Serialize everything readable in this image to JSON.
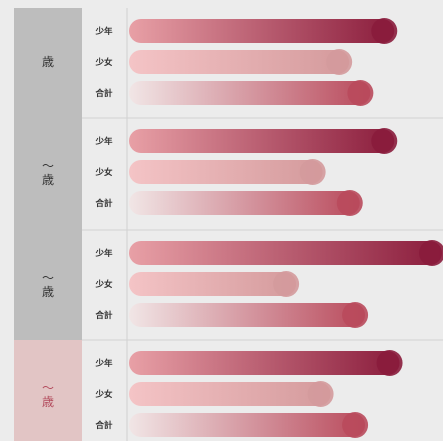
{
  "chart_data": {
    "type": "bar",
    "orientation": "horizontal",
    "groups": [
      {
        "label": "歳",
        "highlight": false,
        "rows": [
          {
            "label": "少年",
            "value": 100
          },
          {
            "label": "少女",
            "value": 83
          },
          {
            "label": "合計",
            "value": 91
          }
        ]
      },
      {
        "label": "〜\n歳",
        "highlight": false,
        "rows": [
          {
            "label": "少年",
            "value": 100
          },
          {
            "label": "少女",
            "value": 73
          },
          {
            "label": "合計",
            "value": 87
          }
        ]
      },
      {
        "label": "〜\n歳",
        "highlight": false,
        "rows": [
          {
            "label": "少年",
            "value": 118
          },
          {
            "label": "少女",
            "value": 63
          },
          {
            "label": "合計",
            "value": 89
          }
        ]
      },
      {
        "label": "〜\n歳",
        "highlight": true,
        "rows": [
          {
            "label": "少年",
            "value": 102
          },
          {
            "label": "少女",
            "value": 76
          },
          {
            "label": "合計",
            "value": 89
          }
        ]
      }
    ],
    "xlim": [
      0,
      118
    ],
    "grid": false,
    "colors": {
      "boy_start": "#e8a0a6",
      "boy_end": "#8a1c3c",
      "girl_start": "#f4c4c6",
      "girl_end": "#d49a9c",
      "total_start": "#f1e6e6",
      "total_end": "#b94a5c",
      "group_bg": "#bdbdbd",
      "group_bg_highlight": "#e2c5c5",
      "group_text": "#333333",
      "group_text_highlight": "#b34a5c"
    }
  }
}
